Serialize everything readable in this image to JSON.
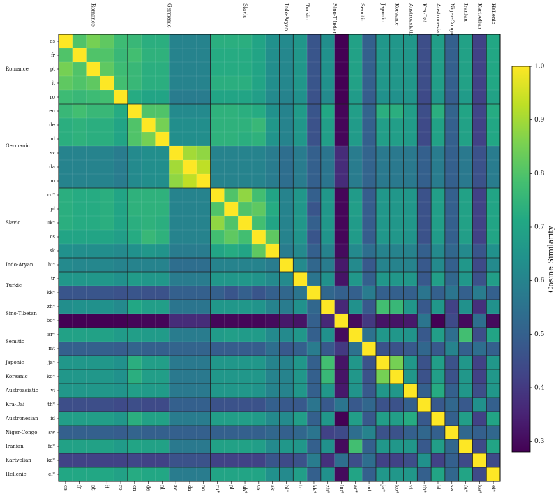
{
  "chart_data": {
    "type": "heatmap",
    "languages": [
      "es",
      "fr",
      "pt",
      "it",
      "ro",
      "en",
      "de",
      "nl",
      "sv",
      "da",
      "no",
      "ru*",
      "pl",
      "uk*",
      "cs",
      "sk",
      "hi*",
      "tr",
      "kk*",
      "zh*",
      "bo*",
      "ar*",
      "mt",
      "ja*",
      "ko*",
      "vi",
      "th*",
      "id",
      "sw",
      "fa*",
      "ka*",
      "el*"
    ],
    "families": [
      {
        "name": "Romance",
        "count": 5
      },
      {
        "name": "Germanic",
        "count": 6
      },
      {
        "name": "Slavic",
        "count": 5
      },
      {
        "name": "Indo-Aryan",
        "count": 1
      },
      {
        "name": "Turkic",
        "count": 2
      },
      {
        "name": "Sino-Tibetan",
        "count": 2
      },
      {
        "name": "Semitic",
        "count": 2
      },
      {
        "name": "Japonic",
        "count": 1
      },
      {
        "name": "Koreanic",
        "count": 1
      },
      {
        "name": "Austroasiatic",
        "count": 1
      },
      {
        "name": "Kra-Dai",
        "count": 1
      },
      {
        "name": "Austronesian",
        "count": 1
      },
      {
        "name": "Niger-Congo",
        "count": 1
      },
      {
        "name": "Iranian",
        "count": 1
      },
      {
        "name": "Kartvelian",
        "count": 1
      },
      {
        "name": "Hellenic",
        "count": 1
      }
    ],
    "colorbar": {
      "label": "Cosine Similarity",
      "min": 0.28,
      "max": 1.0,
      "ticks": [
        0.3,
        0.4,
        0.5,
        0.6,
        0.7,
        0.8,
        0.9,
        1.0
      ]
    },
    "colormap": "viridis",
    "values": [
      [
        1,
        0.8,
        0.85,
        0.82,
        0.77,
        0.76,
        0.73,
        0.73,
        0.6,
        0.6,
        0.6,
        0.73,
        0.73,
        0.73,
        0.7,
        0.64,
        0.62,
        0.66,
        0.47,
        0.63,
        0.28,
        0.69,
        0.5,
        0.66,
        0.66,
        0.66,
        0.45,
        0.68,
        0.5,
        0.69,
        0.42,
        0.71
      ],
      [
        0.8,
        1,
        0.8,
        0.8,
        0.76,
        0.78,
        0.74,
        0.74,
        0.6,
        0.6,
        0.6,
        0.72,
        0.72,
        0.72,
        0.7,
        0.63,
        0.61,
        0.66,
        0.47,
        0.64,
        0.28,
        0.69,
        0.5,
        0.66,
        0.66,
        0.66,
        0.45,
        0.68,
        0.5,
        0.69,
        0.42,
        0.71
      ],
      [
        0.85,
        0.8,
        1,
        0.82,
        0.77,
        0.76,
        0.73,
        0.73,
        0.6,
        0.6,
        0.6,
        0.72,
        0.72,
        0.72,
        0.7,
        0.63,
        0.61,
        0.66,
        0.47,
        0.64,
        0.28,
        0.69,
        0.5,
        0.66,
        0.66,
        0.66,
        0.45,
        0.68,
        0.5,
        0.69,
        0.42,
        0.71
      ],
      [
        0.82,
        0.8,
        0.82,
        1,
        0.78,
        0.76,
        0.73,
        0.73,
        0.6,
        0.6,
        0.6,
        0.73,
        0.73,
        0.73,
        0.7,
        0.63,
        0.61,
        0.66,
        0.47,
        0.64,
        0.28,
        0.69,
        0.5,
        0.66,
        0.66,
        0.66,
        0.45,
        0.68,
        0.5,
        0.69,
        0.42,
        0.71
      ],
      [
        0.77,
        0.76,
        0.77,
        0.78,
        1,
        0.72,
        0.7,
        0.7,
        0.58,
        0.58,
        0.58,
        0.7,
        0.7,
        0.7,
        0.68,
        0.62,
        0.6,
        0.64,
        0.46,
        0.62,
        0.28,
        0.67,
        0.49,
        0.64,
        0.64,
        0.65,
        0.44,
        0.66,
        0.49,
        0.67,
        0.42,
        0.69
      ],
      [
        0.76,
        0.78,
        0.76,
        0.76,
        0.72,
        1,
        0.8,
        0.8,
        0.62,
        0.62,
        0.62,
        0.74,
        0.74,
        0.73,
        0.72,
        0.64,
        0.6,
        0.67,
        0.47,
        0.71,
        0.29,
        0.68,
        0.51,
        0.73,
        0.73,
        0.68,
        0.45,
        0.73,
        0.51,
        0.7,
        0.43,
        0.72
      ],
      [
        0.73,
        0.74,
        0.73,
        0.73,
        0.7,
        0.8,
        1,
        0.85,
        0.63,
        0.63,
        0.63,
        0.74,
        0.74,
        0.74,
        0.76,
        0.66,
        0.6,
        0.66,
        0.46,
        0.68,
        0.29,
        0.67,
        0.5,
        0.68,
        0.68,
        0.67,
        0.44,
        0.69,
        0.5,
        0.69,
        0.42,
        0.71
      ],
      [
        0.73,
        0.74,
        0.73,
        0.73,
        0.7,
        0.8,
        0.85,
        1,
        0.63,
        0.63,
        0.63,
        0.74,
        0.74,
        0.73,
        0.74,
        0.65,
        0.6,
        0.66,
        0.46,
        0.68,
        0.29,
        0.67,
        0.5,
        0.68,
        0.68,
        0.67,
        0.44,
        0.69,
        0.5,
        0.69,
        0.42,
        0.71
      ],
      [
        0.6,
        0.6,
        0.6,
        0.6,
        0.58,
        0.62,
        0.63,
        0.63,
        1,
        0.9,
        0.88,
        0.6,
        0.6,
        0.6,
        0.6,
        0.58,
        0.54,
        0.58,
        0.5,
        0.56,
        0.37,
        0.58,
        0.51,
        0.57,
        0.57,
        0.57,
        0.5,
        0.58,
        0.5,
        0.57,
        0.46,
        0.58
      ],
      [
        0.6,
        0.6,
        0.6,
        0.6,
        0.58,
        0.62,
        0.63,
        0.63,
        0.9,
        1,
        0.93,
        0.6,
        0.6,
        0.6,
        0.6,
        0.58,
        0.54,
        0.58,
        0.5,
        0.56,
        0.37,
        0.58,
        0.51,
        0.57,
        0.57,
        0.57,
        0.5,
        0.58,
        0.5,
        0.57,
        0.46,
        0.58
      ],
      [
        0.6,
        0.6,
        0.6,
        0.6,
        0.58,
        0.62,
        0.63,
        0.63,
        0.88,
        0.93,
        1,
        0.6,
        0.6,
        0.6,
        0.6,
        0.58,
        0.54,
        0.58,
        0.5,
        0.56,
        0.37,
        0.58,
        0.51,
        0.57,
        0.57,
        0.57,
        0.5,
        0.58,
        0.5,
        0.57,
        0.46,
        0.58
      ],
      [
        0.73,
        0.72,
        0.72,
        0.73,
        0.7,
        0.74,
        0.74,
        0.74,
        0.6,
        0.6,
        0.6,
        1,
        0.8,
        0.88,
        0.78,
        0.7,
        0.6,
        0.66,
        0.5,
        0.66,
        0.29,
        0.67,
        0.49,
        0.66,
        0.66,
        0.66,
        0.46,
        0.68,
        0.5,
        0.69,
        0.42,
        0.7
      ],
      [
        0.73,
        0.72,
        0.72,
        0.73,
        0.7,
        0.74,
        0.74,
        0.74,
        0.6,
        0.6,
        0.6,
        0.8,
        1,
        0.8,
        0.82,
        0.72,
        0.6,
        0.66,
        0.47,
        0.66,
        0.29,
        0.68,
        0.49,
        0.66,
        0.66,
        0.66,
        0.46,
        0.68,
        0.5,
        0.69,
        0.42,
        0.7
      ],
      [
        0.73,
        0.72,
        0.72,
        0.73,
        0.7,
        0.73,
        0.74,
        0.73,
        0.6,
        0.6,
        0.6,
        0.88,
        0.8,
        1,
        0.78,
        0.7,
        0.6,
        0.66,
        0.5,
        0.66,
        0.29,
        0.67,
        0.49,
        0.66,
        0.66,
        0.66,
        0.46,
        0.68,
        0.5,
        0.69,
        0.42,
        0.7
      ],
      [
        0.7,
        0.7,
        0.7,
        0.7,
        0.68,
        0.72,
        0.76,
        0.74,
        0.6,
        0.6,
        0.6,
        0.78,
        0.82,
        0.78,
        1,
        0.82,
        0.6,
        0.65,
        0.47,
        0.65,
        0.29,
        0.67,
        0.49,
        0.66,
        0.66,
        0.65,
        0.46,
        0.67,
        0.5,
        0.68,
        0.42,
        0.7
      ],
      [
        0.64,
        0.63,
        0.63,
        0.63,
        0.62,
        0.64,
        0.66,
        0.65,
        0.58,
        0.58,
        0.58,
        0.7,
        0.72,
        0.7,
        0.82,
        1,
        0.58,
        0.62,
        0.5,
        0.6,
        0.3,
        0.62,
        0.54,
        0.6,
        0.6,
        0.6,
        0.5,
        0.62,
        0.52,
        0.62,
        0.47,
        0.64
      ],
      [
        0.62,
        0.61,
        0.61,
        0.61,
        0.6,
        0.6,
        0.6,
        0.6,
        0.54,
        0.54,
        0.54,
        0.6,
        0.6,
        0.6,
        0.6,
        0.58,
        1,
        0.62,
        0.52,
        0.58,
        0.33,
        0.62,
        0.48,
        0.6,
        0.6,
        0.6,
        0.48,
        0.62,
        0.5,
        0.66,
        0.44,
        0.62
      ],
      [
        0.66,
        0.66,
        0.66,
        0.66,
        0.64,
        0.67,
        0.66,
        0.66,
        0.58,
        0.58,
        0.58,
        0.66,
        0.66,
        0.66,
        0.65,
        0.62,
        0.62,
        1,
        0.56,
        0.64,
        0.32,
        0.66,
        0.5,
        0.66,
        0.66,
        0.66,
        0.48,
        0.68,
        0.52,
        0.66,
        0.46,
        0.68
      ],
      [
        0.47,
        0.47,
        0.47,
        0.47,
        0.46,
        0.47,
        0.46,
        0.46,
        0.5,
        0.5,
        0.5,
        0.5,
        0.47,
        0.5,
        0.47,
        0.5,
        0.52,
        0.56,
        1,
        0.52,
        0.5,
        0.5,
        0.58,
        0.5,
        0.5,
        0.5,
        0.56,
        0.5,
        0.56,
        0.5,
        0.58,
        0.5
      ],
      [
        0.63,
        0.64,
        0.64,
        0.64,
        0.62,
        0.71,
        0.68,
        0.68,
        0.56,
        0.56,
        0.56,
        0.66,
        0.66,
        0.66,
        0.65,
        0.6,
        0.58,
        0.64,
        0.52,
        1,
        0.36,
        0.64,
        0.48,
        0.78,
        0.76,
        0.66,
        0.48,
        0.66,
        0.42,
        0.64,
        0.38,
        0.64
      ],
      [
        0.28,
        0.28,
        0.28,
        0.28,
        0.28,
        0.29,
        0.29,
        0.29,
        0.37,
        0.37,
        0.37,
        0.29,
        0.29,
        0.29,
        0.29,
        0.3,
        0.33,
        0.32,
        0.5,
        0.36,
        1,
        0.3,
        0.4,
        0.32,
        0.32,
        0.33,
        0.56,
        0.28,
        0.44,
        0.3,
        0.54,
        0.3
      ],
      [
        0.69,
        0.69,
        0.69,
        0.69,
        0.67,
        0.68,
        0.67,
        0.67,
        0.58,
        0.58,
        0.58,
        0.67,
        0.68,
        0.67,
        0.67,
        0.62,
        0.62,
        0.66,
        0.5,
        0.64,
        0.3,
        1,
        0.55,
        0.66,
        0.66,
        0.65,
        0.48,
        0.68,
        0.54,
        0.78,
        0.45,
        0.7
      ],
      [
        0.5,
        0.5,
        0.5,
        0.5,
        0.49,
        0.51,
        0.5,
        0.5,
        0.51,
        0.51,
        0.51,
        0.49,
        0.49,
        0.49,
        0.49,
        0.54,
        0.48,
        0.5,
        0.58,
        0.48,
        0.4,
        0.55,
        1,
        0.46,
        0.46,
        0.48,
        0.52,
        0.48,
        0.6,
        0.5,
        0.54,
        0.5
      ],
      [
        0.66,
        0.66,
        0.66,
        0.66,
        0.64,
        0.73,
        0.68,
        0.68,
        0.57,
        0.57,
        0.57,
        0.66,
        0.66,
        0.66,
        0.66,
        0.6,
        0.6,
        0.66,
        0.5,
        0.78,
        0.32,
        0.66,
        0.46,
        1,
        0.85,
        0.66,
        0.46,
        0.68,
        0.46,
        0.66,
        0.42,
        0.66
      ],
      [
        0.66,
        0.66,
        0.66,
        0.66,
        0.64,
        0.73,
        0.68,
        0.68,
        0.57,
        0.57,
        0.57,
        0.66,
        0.66,
        0.66,
        0.66,
        0.6,
        0.6,
        0.66,
        0.5,
        0.76,
        0.32,
        0.66,
        0.46,
        0.85,
        1,
        0.66,
        0.46,
        0.68,
        0.46,
        0.66,
        0.42,
        0.66
      ],
      [
        0.66,
        0.66,
        0.66,
        0.66,
        0.65,
        0.68,
        0.67,
        0.67,
        0.57,
        0.57,
        0.57,
        0.66,
        0.66,
        0.66,
        0.65,
        0.6,
        0.6,
        0.66,
        0.5,
        0.66,
        0.33,
        0.65,
        0.48,
        0.66,
        0.66,
        1,
        0.5,
        0.72,
        0.5,
        0.66,
        0.45,
        0.66
      ],
      [
        0.45,
        0.45,
        0.45,
        0.45,
        0.44,
        0.45,
        0.44,
        0.44,
        0.5,
        0.5,
        0.5,
        0.46,
        0.46,
        0.46,
        0.46,
        0.5,
        0.48,
        0.48,
        0.56,
        0.48,
        0.56,
        0.48,
        0.52,
        0.46,
        0.46,
        0.5,
        1,
        0.48,
        0.52,
        0.48,
        0.64,
        0.5
      ],
      [
        0.68,
        0.68,
        0.68,
        0.68,
        0.66,
        0.73,
        0.69,
        0.69,
        0.58,
        0.58,
        0.58,
        0.68,
        0.68,
        0.68,
        0.67,
        0.62,
        0.62,
        0.68,
        0.5,
        0.66,
        0.28,
        0.68,
        0.48,
        0.68,
        0.68,
        0.72,
        0.48,
        1,
        0.5,
        0.68,
        0.42,
        0.7
      ],
      [
        0.5,
        0.5,
        0.5,
        0.5,
        0.49,
        0.51,
        0.5,
        0.5,
        0.5,
        0.5,
        0.5,
        0.5,
        0.5,
        0.5,
        0.5,
        0.52,
        0.5,
        0.52,
        0.56,
        0.42,
        0.44,
        0.54,
        0.6,
        0.46,
        0.46,
        0.5,
        0.52,
        0.5,
        1,
        0.52,
        0.5,
        0.52
      ],
      [
        0.69,
        0.69,
        0.69,
        0.69,
        0.67,
        0.7,
        0.69,
        0.69,
        0.57,
        0.57,
        0.57,
        0.69,
        0.69,
        0.69,
        0.68,
        0.62,
        0.66,
        0.66,
        0.5,
        0.64,
        0.3,
        0.78,
        0.5,
        0.66,
        0.66,
        0.66,
        0.48,
        0.68,
        0.52,
        1,
        0.44,
        0.7
      ],
      [
        0.42,
        0.42,
        0.42,
        0.42,
        0.42,
        0.43,
        0.42,
        0.42,
        0.46,
        0.46,
        0.46,
        0.42,
        0.42,
        0.42,
        0.42,
        0.47,
        0.44,
        0.46,
        0.58,
        0.38,
        0.54,
        0.45,
        0.54,
        0.42,
        0.42,
        0.45,
        0.64,
        0.42,
        0.5,
        0.44,
        1,
        0.44
      ],
      [
        0.71,
        0.71,
        0.71,
        0.71,
        0.69,
        0.72,
        0.71,
        0.71,
        0.58,
        0.58,
        0.58,
        0.7,
        0.7,
        0.7,
        0.7,
        0.64,
        0.62,
        0.68,
        0.5,
        0.64,
        0.3,
        0.7,
        0.5,
        0.66,
        0.66,
        0.66,
        0.5,
        0.7,
        0.52,
        0.7,
        0.44,
        1
      ]
    ]
  }
}
